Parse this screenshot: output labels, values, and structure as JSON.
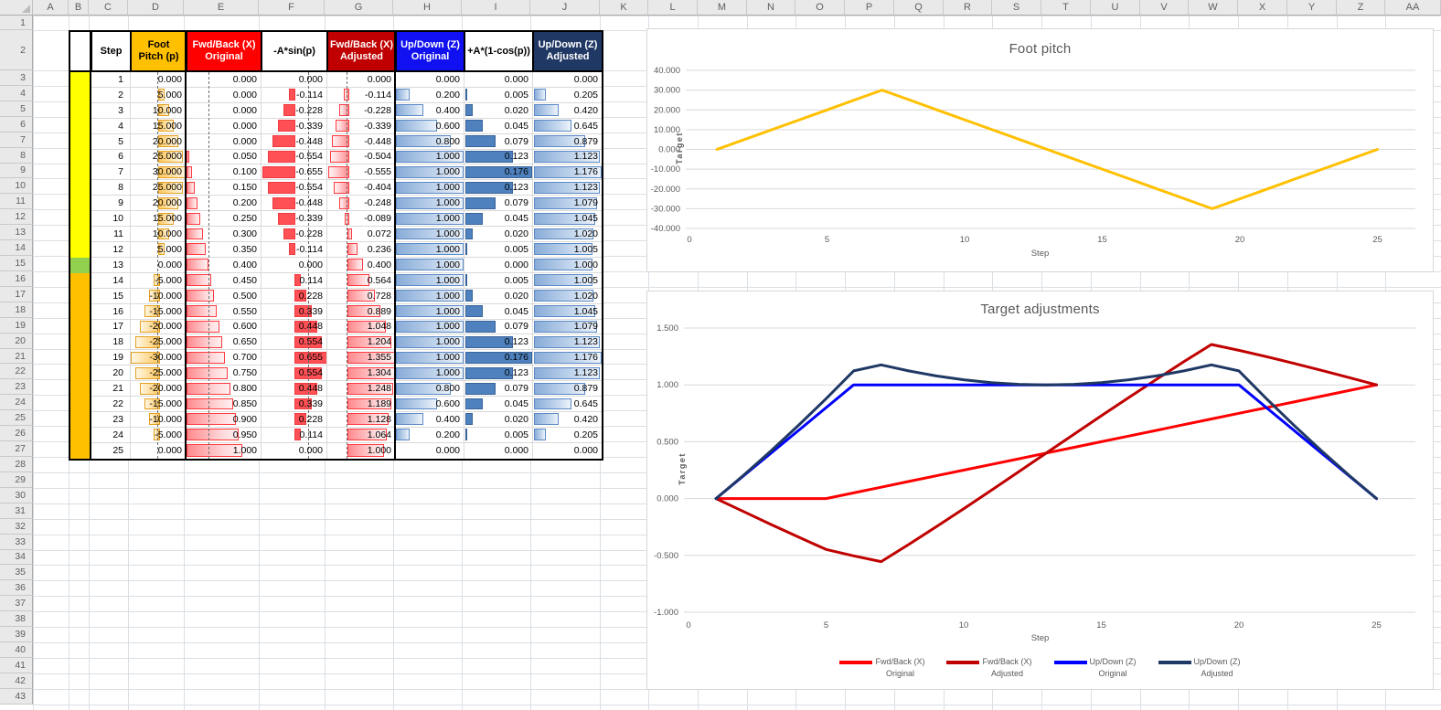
{
  "sheet": {
    "columns": [
      "A",
      "B",
      "C",
      "D",
      "E",
      "F",
      "G",
      "H",
      "I",
      "J",
      "K",
      "L",
      "M",
      "N",
      "O",
      "P",
      "Q",
      "R",
      "S",
      "T",
      "U",
      "V",
      "W",
      "X",
      "Y",
      "Z",
      "AA"
    ],
    "row_count": 43
  },
  "table": {
    "headers": [
      {
        "lines": [
          ""
        ],
        "bg": "#FFFFFF",
        "fg": "#000000"
      },
      {
        "lines": [
          "Step"
        ],
        "bg": "#FFFFFF",
        "fg": "#000000"
      },
      {
        "lines": [
          "Foot",
          "Pitch (p)"
        ],
        "bg": "#FFC000",
        "fg": "#000000"
      },
      {
        "lines": [
          "Fwd/Back (X)",
          "Original"
        ],
        "bg": "#FF0000",
        "fg": "#FFFFFF"
      },
      {
        "lines": [
          "-A*sin(p)"
        ],
        "bg": "#FFFFFF",
        "fg": "#000000"
      },
      {
        "lines": [
          "Fwd/Back (X)",
          "Adjusted"
        ],
        "bg": "#C00000",
        "fg": "#FFFFFF"
      },
      {
        "lines": [
          "Up/Down (Z)",
          "Original"
        ],
        "bg": "#1010F0",
        "fg": "#FFFFFF"
      },
      {
        "lines": [
          "+A*(1-cos(p))",
          ""
        ],
        "bg": "#FFFFFF",
        "fg": "#000000"
      },
      {
        "lines": [
          "Up/Down (Z)",
          "Adjusted"
        ],
        "bg": "#1F3864",
        "fg": "#FFFFFF"
      }
    ],
    "strip_colors": {
      "rising": "#FFFF00",
      "zero": "#92D050",
      "falling": "#FFC000"
    },
    "rows": [
      {
        "step": "1",
        "strip": "#FFFF00",
        "cells": [
          "0.000",
          "0.000",
          "0.000",
          "0.000",
          "0.000",
          "0.000",
          "0.000"
        ]
      },
      {
        "step": "2",
        "strip": "#FFFF00",
        "cells": [
          "5.000",
          "0.000",
          "-0.114",
          "-0.114",
          "0.200",
          "0.005",
          "0.205"
        ]
      },
      {
        "step": "3",
        "strip": "#FFFF00",
        "cells": [
          "10.000",
          "0.000",
          "-0.228",
          "-0.228",
          "0.400",
          "0.020",
          "0.420"
        ]
      },
      {
        "step": "4",
        "strip": "#FFFF00",
        "cells": [
          "15.000",
          "0.000",
          "-0.339",
          "-0.339",
          "0.600",
          "0.045",
          "0.645"
        ]
      },
      {
        "step": "5",
        "strip": "#FFFF00",
        "cells": [
          "20.000",
          "0.000",
          "-0.448",
          "-0.448",
          "0.800",
          "0.079",
          "0.879"
        ]
      },
      {
        "step": "6",
        "strip": "#FFFF00",
        "cells": [
          "25.000",
          "0.050",
          "-0.554",
          "-0.504",
          "1.000",
          "0.123",
          "1.123"
        ]
      },
      {
        "step": "7",
        "strip": "#FFFF00",
        "cells": [
          "30.000",
          "0.100",
          "-0.655",
          "-0.555",
          "1.000",
          "0.176",
          "1.176"
        ]
      },
      {
        "step": "8",
        "strip": "#FFFF00",
        "cells": [
          "25.000",
          "0.150",
          "-0.554",
          "-0.404",
          "1.000",
          "0.123",
          "1.123"
        ]
      },
      {
        "step": "9",
        "strip": "#FFFF00",
        "cells": [
          "20.000",
          "0.200",
          "-0.448",
          "-0.248",
          "1.000",
          "0.079",
          "1.079"
        ]
      },
      {
        "step": "10",
        "strip": "#FFFF00",
        "cells": [
          "15.000",
          "0.250",
          "-0.339",
          "-0.089",
          "1.000",
          "0.045",
          "1.045"
        ]
      },
      {
        "step": "11",
        "strip": "#FFFF00",
        "cells": [
          "10.000",
          "0.300",
          "-0.228",
          "0.072",
          "1.000",
          "0.020",
          "1.020"
        ]
      },
      {
        "step": "12",
        "strip": "#FFFF00",
        "cells": [
          "5.000",
          "0.350",
          "-0.114",
          "0.236",
          "1.000",
          "0.005",
          "1.005"
        ]
      },
      {
        "step": "13",
        "strip": "#92D050",
        "cells": [
          "0.000",
          "0.400",
          "0.000",
          "0.400",
          "1.000",
          "0.000",
          "1.000"
        ]
      },
      {
        "step": "14",
        "strip": "#FFC000",
        "cells": [
          "-5.000",
          "0.450",
          "0.114",
          "0.564",
          "1.000",
          "0.005",
          "1.005"
        ]
      },
      {
        "step": "15",
        "strip": "#FFC000",
        "cells": [
          "-10.000",
          "0.500",
          "0.228",
          "0.728",
          "1.000",
          "0.020",
          "1.020"
        ]
      },
      {
        "step": "16",
        "strip": "#FFC000",
        "cells": [
          "-15.000",
          "0.550",
          "0.339",
          "0.889",
          "1.000",
          "0.045",
          "1.045"
        ]
      },
      {
        "step": "17",
        "strip": "#FFC000",
        "cells": [
          "-20.000",
          "0.600",
          "0.448",
          "1.048",
          "1.000",
          "0.079",
          "1.079"
        ]
      },
      {
        "step": "18",
        "strip": "#FFC000",
        "cells": [
          "-25.000",
          "0.650",
          "0.554",
          "1.204",
          "1.000",
          "0.123",
          "1.123"
        ]
      },
      {
        "step": "19",
        "strip": "#FFC000",
        "cells": [
          "-30.000",
          "0.700",
          "0.655",
          "1.355",
          "1.000",
          "0.176",
          "1.176"
        ]
      },
      {
        "step": "20",
        "strip": "#FFC000",
        "cells": [
          "-25.000",
          "0.750",
          "0.554",
          "1.304",
          "1.000",
          "0.123",
          "1.123"
        ]
      },
      {
        "step": "21",
        "strip": "#FFC000",
        "cells": [
          "-20.000",
          "0.800",
          "0.448",
          "1.248",
          "0.800",
          "0.079",
          "0.879"
        ]
      },
      {
        "step": "22",
        "strip": "#FFC000",
        "cells": [
          "-15.000",
          "0.850",
          "0.339",
          "1.189",
          "0.600",
          "0.045",
          "0.645"
        ]
      },
      {
        "step": "23",
        "strip": "#FFC000",
        "cells": [
          "-10.000",
          "0.900",
          "0.228",
          "1.128",
          "0.400",
          "0.020",
          "0.420"
        ]
      },
      {
        "step": "24",
        "strip": "#FFC000",
        "cells": [
          "-5.000",
          "0.950",
          "0.114",
          "1.064",
          "0.200",
          "0.005",
          "0.205"
        ]
      },
      {
        "step": "25",
        "strip": "#FFC000",
        "cells": [
          "0.000",
          "1.000",
          "0.000",
          "1.000",
          "0.000",
          "0.000",
          "0.000"
        ]
      }
    ]
  },
  "chart_data": [
    {
      "type": "line",
      "title": "Foot pitch",
      "xlabel": "Step",
      "ylabel": "Target",
      "x": [
        1,
        2,
        3,
        4,
        5,
        6,
        7,
        8,
        9,
        10,
        11,
        12,
        13,
        14,
        15,
        16,
        17,
        18,
        19,
        20,
        21,
        22,
        23,
        24,
        25
      ],
      "xticks": [
        0,
        5,
        10,
        15,
        20,
        25
      ],
      "ylim": [
        -40,
        40
      ],
      "ytick_step": 10,
      "grid": true,
      "legend_position": "none",
      "series": [
        {
          "name": "Foot Pitch (p)",
          "color": "#FFC000",
          "values": [
            0,
            5,
            10,
            15,
            20,
            25,
            30,
            25,
            20,
            15,
            10,
            5,
            0,
            -5,
            -10,
            -15,
            -20,
            -25,
            -30,
            -25,
            -20,
            -15,
            -10,
            -5,
            0
          ]
        }
      ]
    },
    {
      "type": "line",
      "title": "Target adjustments",
      "xlabel": "Step",
      "ylabel": "Target",
      "x": [
        1,
        2,
        3,
        4,
        5,
        6,
        7,
        8,
        9,
        10,
        11,
        12,
        13,
        14,
        15,
        16,
        17,
        18,
        19,
        20,
        21,
        22,
        23,
        24,
        25
      ],
      "xticks": [
        0,
        5,
        10,
        15,
        20,
        25
      ],
      "ylim": [
        -1.0,
        1.5
      ],
      "ytick_step": 0.5,
      "grid": true,
      "legend_position": "bottom",
      "series": [
        {
          "name": "Fwd/Back (X) Original",
          "legend": [
            "Fwd/Back (X)",
            "Original"
          ],
          "color": "#FF0000",
          "values": [
            0,
            0,
            0,
            0,
            0,
            0.05,
            0.1,
            0.15,
            0.2,
            0.25,
            0.3,
            0.35,
            0.4,
            0.45,
            0.5,
            0.55,
            0.6,
            0.65,
            0.7,
            0.75,
            0.8,
            0.85,
            0.9,
            0.95,
            1.0
          ]
        },
        {
          "name": "Fwd/Back (X) Adjusted",
          "legend": [
            "Fwd/Back (X)",
            "Adjusted"
          ],
          "color": "#C00000",
          "values": [
            0,
            -0.114,
            -0.228,
            -0.339,
            -0.448,
            -0.504,
            -0.555,
            -0.404,
            -0.248,
            -0.089,
            0.072,
            0.236,
            0.4,
            0.564,
            0.728,
            0.889,
            1.048,
            1.204,
            1.355,
            1.304,
            1.248,
            1.189,
            1.128,
            1.064,
            1.0
          ]
        },
        {
          "name": "Up/Down (Z) Original",
          "legend": [
            "Up/Down (Z)",
            "Original"
          ],
          "color": "#0000FF",
          "values": [
            0,
            0.2,
            0.4,
            0.6,
            0.8,
            1,
            1,
            1,
            1,
            1,
            1,
            1,
            1,
            1,
            1,
            1,
            1,
            1,
            1,
            1,
            0.8,
            0.6,
            0.4,
            0.2,
            0
          ]
        },
        {
          "name": "Up/Down (Z) Adjusted",
          "legend": [
            "Up/Down (Z)",
            "Adjusted"
          ],
          "color": "#1F3864",
          "values": [
            0,
            0.205,
            0.42,
            0.645,
            0.879,
            1.123,
            1.176,
            1.123,
            1.079,
            1.045,
            1.02,
            1.005,
            1.0,
            1.005,
            1.02,
            1.045,
            1.079,
            1.123,
            1.176,
            1.123,
            0.879,
            0.645,
            0.42,
            0.205,
            0
          ]
        }
      ]
    }
  ]
}
